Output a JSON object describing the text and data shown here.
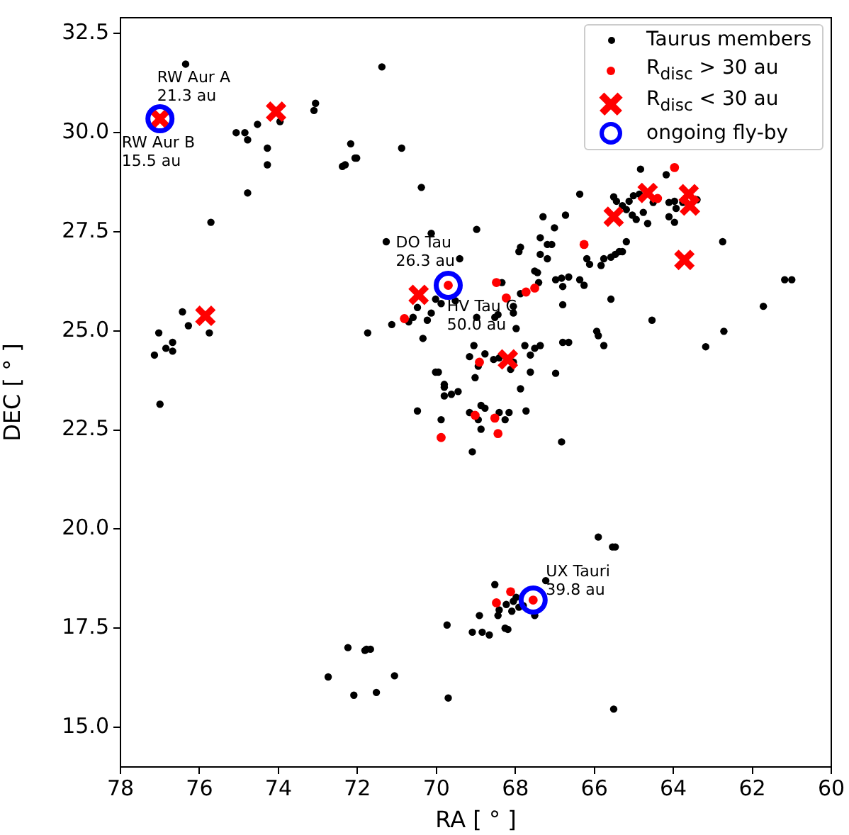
{
  "chart_data": {
    "type": "scatter",
    "xlabel": "RA [ ° ]",
    "ylabel": "DEC [ ° ]",
    "xlim": [
      78,
      60
    ],
    "xticks": [
      78,
      76,
      74,
      72,
      70,
      68,
      66,
      64,
      62,
      60
    ],
    "ylim": [
      14.0,
      32.9
    ],
    "yticks": [
      {
        "value": 15,
        "label": "15.0"
      },
      {
        "value": 17.5,
        "label": "17.5"
      },
      {
        "value": 20,
        "label": "20.0"
      },
      {
        "value": 22.5,
        "label": "22.5"
      },
      {
        "value": 25,
        "label": "25.0"
      },
      {
        "value": 27.5,
        "label": "27.5"
      },
      {
        "value": 30,
        "label": "30.0"
      },
      {
        "value": 32.5,
        "label": "32.5"
      }
    ],
    "grid": false,
    "legend": "top right",
    "series": [
      {
        "name": "Taurus members",
        "color": "#000000",
        "marker": "circle",
        "x": [
          76.35,
          71.38,
          73.96,
          73.06,
          73.1,
          74.53,
          75.07,
          74.85,
          74.78,
          74.28,
          74.28,
          74.78,
          75.71,
          72.17,
          72.38,
          72.31,
          72.06,
          72.02,
          70.88,
          70.38,
          70.13,
          71.27,
          69.41,
          71.13,
          70.59,
          70.7,
          70.23,
          70.34,
          71.74,
          70.02,
          69.88,
          69.52,
          70.02,
          69.95,
          69.8,
          76.43,
          76.28,
          75.75,
          77.03,
          76.85,
          76.68,
          76.68,
          77.14,
          77.0,
          70.48,
          69.88,
          69.8,
          69.8,
          69.62,
          69.45,
          69.16,
          69.09,
          69.73,
          69.09,
          72.24,
          71.81,
          71.77,
          71.67,
          72.74,
          71.06,
          72.09,
          71.52,
          69.7,
          67.87,
          67.91,
          67.37,
          67.19,
          67.08,
          67.37,
          67.19,
          65.19,
          65.58,
          65.47,
          65.37,
          65.29,
          65.83,
          66.12,
          66.19,
          67.51,
          67.44,
          66.98,
          66.83,
          66.65,
          66.8,
          66.37,
          66.26,
          67.41,
          68.34,
          67.87,
          68.05,
          68.05,
          68.52,
          68.44,
          67.98,
          68.98,
          66.8,
          65.58,
          69.05,
          69.16,
          68.77,
          68.94,
          68.55,
          68.41,
          68.05,
          67.76,
          67.51,
          67.37,
          67.62,
          67.62,
          68.12,
          69.02,
          66.98,
          66.8,
          66.65,
          65.94,
          65.9,
          65.76,
          67.87,
          68.87,
          68.77,
          68.94,
          68.87,
          68.41,
          68.26,
          68.16,
          67.73,
          66.83,
          64.83,
          64.18,
          66.37,
          65.51,
          65.44,
          65.29,
          65.12,
          65.01,
          64.86,
          65.19,
          65.04,
          64.94,
          64.65,
          64.76,
          64.51,
          64.11,
          63.97,
          63.93,
          64.11,
          63.97,
          63.76,
          63.4,
          67.3,
          66.73,
          67.01,
          68.98,
          62.75,
          65.76,
          64.54,
          61.72,
          62.72,
          63.18,
          61.18,
          61.0,
          65.9,
          65.54,
          65.47,
          67.23,
          68.52,
          68.91,
          68.84,
          68.66,
          68.26,
          68.19,
          68.41,
          68.44,
          68.23,
          68.09,
          67.98,
          67.91,
          67.8,
          67.51,
          68.05,
          65.51,
          70.48,
          70.13
        ],
        "values": [
          31.73,
          31.66,
          30.28,
          30.74,
          30.56,
          30.21,
          30.0,
          30.0,
          29.82,
          29.61,
          29.19,
          28.48,
          27.74,
          29.72,
          29.15,
          29.19,
          29.36,
          29.36,
          29.61,
          28.62,
          27.46,
          27.25,
          26.82,
          25.16,
          25.34,
          25.23,
          25.27,
          24.81,
          24.95,
          25.8,
          25.69,
          25.76,
          23.96,
          23.96,
          23.65,
          25.48,
          25.13,
          24.95,
          24.95,
          24.56,
          24.71,
          24.49,
          24.39,
          23.15,
          22.98,
          22.76,
          23.58,
          23.36,
          23.4,
          23.47,
          22.94,
          21.95,
          17.58,
          17.4,
          17.01,
          16.94,
          16.97,
          16.97,
          16.27,
          16.3,
          15.81,
          15.88,
          15.74,
          27.11,
          27.0,
          27.35,
          27.18,
          27.18,
          26.93,
          26.82,
          27.25,
          26.86,
          26.93,
          27.0,
          27.0,
          26.65,
          26.68,
          26.82,
          26.51,
          26.47,
          26.29,
          26.33,
          26.36,
          26.12,
          26.29,
          26.15,
          26.22,
          26.22,
          25.94,
          25.62,
          25.45,
          25.34,
          25.41,
          25.06,
          25.34,
          25.66,
          25.8,
          24.63,
          24.35,
          24.42,
          24.11,
          24.28,
          24.32,
          24.21,
          24.63,
          24.56,
          24.63,
          24.39,
          23.96,
          24.03,
          23.82,
          23.93,
          24.71,
          24.71,
          24.99,
          24.88,
          24.63,
          23.54,
          23.12,
          23.05,
          22.76,
          22.52,
          22.94,
          22.76,
          22.94,
          22.98,
          22.2,
          29.08,
          28.94,
          28.45,
          28.38,
          28.27,
          28.16,
          28.27,
          28.41,
          28.45,
          28.06,
          27.92,
          27.81,
          27.71,
          27.99,
          28.24,
          28.24,
          28.27,
          28.09,
          27.88,
          27.74,
          28.24,
          28.31,
          27.88,
          27.92,
          27.6,
          27.56,
          27.25,
          26.82,
          25.27,
          25.62,
          24.99,
          24.6,
          26.29,
          26.29,
          19.8,
          19.55,
          19.55,
          18.7,
          18.6,
          17.82,
          17.4,
          17.33,
          17.5,
          17.47,
          17.96,
          17.82,
          18.1,
          17.93,
          18.28,
          18.03,
          18.07,
          17.82,
          18.18,
          15.46,
          25.59,
          25.45
        ]
      },
      {
        "name": "R$_{disc}$ > 30 au",
        "color": "#ff0000",
        "marker": "circle",
        "x": [
          70.81,
          66.26,
          68.48,
          68.23,
          67.73,
          67.51,
          68.91,
          69.02,
          68.52,
          68.44,
          69.88,
          63.97,
          64.4,
          68.12,
          68.48,
          69.7,
          67.55
        ],
        "values": [
          25.31,
          27.18,
          26.22,
          25.83,
          25.98,
          26.08,
          24.21,
          22.87,
          22.8,
          22.41,
          22.31,
          29.12,
          28.34,
          18.42,
          18.14,
          26.15,
          18.21
        ]
      },
      {
        "name": "R$_{disc}$ < 30 au",
        "color": "#ff0000",
        "marker": "cross",
        "x": [
          77.0,
          74.06,
          75.85,
          70.45,
          68.19,
          64.65,
          63.61,
          63.58,
          65.51,
          63.72
        ],
        "values": [
          30.35,
          30.53,
          25.38,
          25.91,
          24.28,
          28.48,
          28.45,
          28.16,
          27.88,
          26.79
        ]
      },
      {
        "name": "ongoing fly-by",
        "color": "#0000ff",
        "marker": "circle",
        "x": [
          77.0,
          69.7,
          67.55
        ],
        "values": [
          30.35,
          26.15,
          18.21
        ]
      }
    ],
    "annotations": [
      {
        "text": "RW Aur A\n21.3 au",
        "x": 77.0,
        "y": 30.35
      },
      {
        "text": "RW Aur B\n15.5 au",
        "x": 77.0,
        "y": 30.35
      },
      {
        "text": "DO Tau\n26.3 au",
        "x": 69.7,
        "y": 26.15
      },
      {
        "text": "HV Tau C\n50.0 au",
        "x": 69.73,
        "y": 25.8
      },
      {
        "text": "UX Tauri\n39.8 au",
        "x": 67.55,
        "y": 18.21
      }
    ]
  }
}
